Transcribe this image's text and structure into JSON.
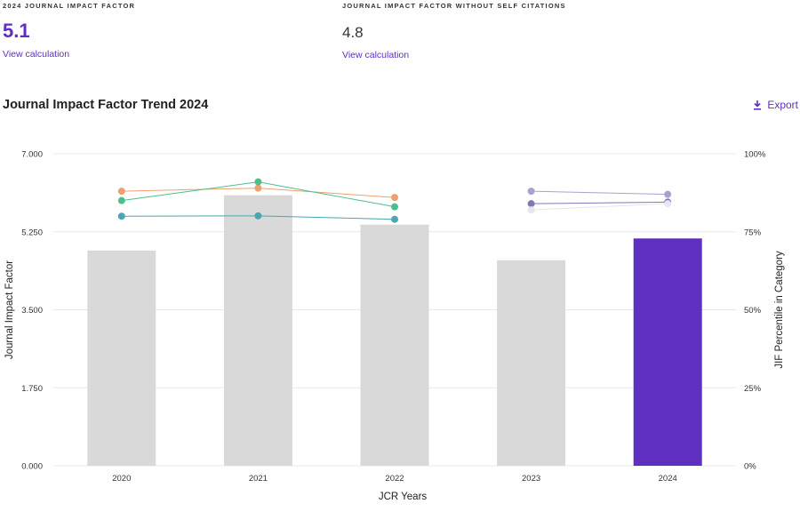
{
  "metrics": [
    {
      "label": "2024 JOURNAL IMPACT FACTOR",
      "value": "5.1",
      "link": "View calculation"
    },
    {
      "label": "JOURNAL IMPACT FACTOR WITHOUT SELF CITATIONS",
      "value": "4.8",
      "link": "View calculation"
    }
  ],
  "section": {
    "title": "Journal Impact Factor Trend 2024",
    "export_label": "Export",
    "export_icon": "download-icon"
  },
  "colors": {
    "accent": "#5f2fbf",
    "bar": "#d9d9d9",
    "grid": "#e6e6e6"
  },
  "chart_data": {
    "type": "bar",
    "title": "Journal Impact Factor Trend 2024",
    "xlabel": "JCR Years",
    "ylabel": "Journal Impact Factor",
    "y2label": "JIF Percentile in Category",
    "categories": [
      "2020",
      "2021",
      "2022",
      "2023",
      "2024"
    ],
    "values": [
      4.83,
      6.07,
      5.41,
      4.61,
      5.1
    ],
    "highlight_index": 4,
    "ylim": [
      0,
      7
    ],
    "yticks": [
      "0.000",
      "1.750",
      "3.500",
      "5.250",
      "7.000"
    ],
    "y2lim": [
      0,
      100
    ],
    "y2ticks": [
      "0%",
      "25%",
      "50%",
      "75%",
      "100%"
    ],
    "grid": true,
    "percentile_series": [
      {
        "color": "#f0a070",
        "points": [
          [
            0,
            88
          ],
          [
            1,
            89
          ],
          [
            2,
            86
          ]
        ]
      },
      {
        "color": "#4cc08c",
        "points": [
          [
            0,
            85
          ],
          [
            1,
            91
          ],
          [
            2,
            83
          ]
        ]
      },
      {
        "color": "#4aa6b0",
        "points": [
          [
            0,
            80
          ],
          [
            1,
            80.1
          ],
          [
            2,
            79
          ]
        ]
      },
      {
        "color": "#a9a2cf",
        "points": [
          [
            3,
            88
          ],
          [
            4,
            87
          ]
        ]
      },
      {
        "color": "#7f78b8",
        "points": [
          [
            3,
            84
          ],
          [
            4,
            84.5
          ]
        ]
      },
      {
        "color": "#e6e6ee",
        "points": [
          [
            3,
            82
          ],
          [
            4,
            84
          ]
        ]
      }
    ]
  }
}
